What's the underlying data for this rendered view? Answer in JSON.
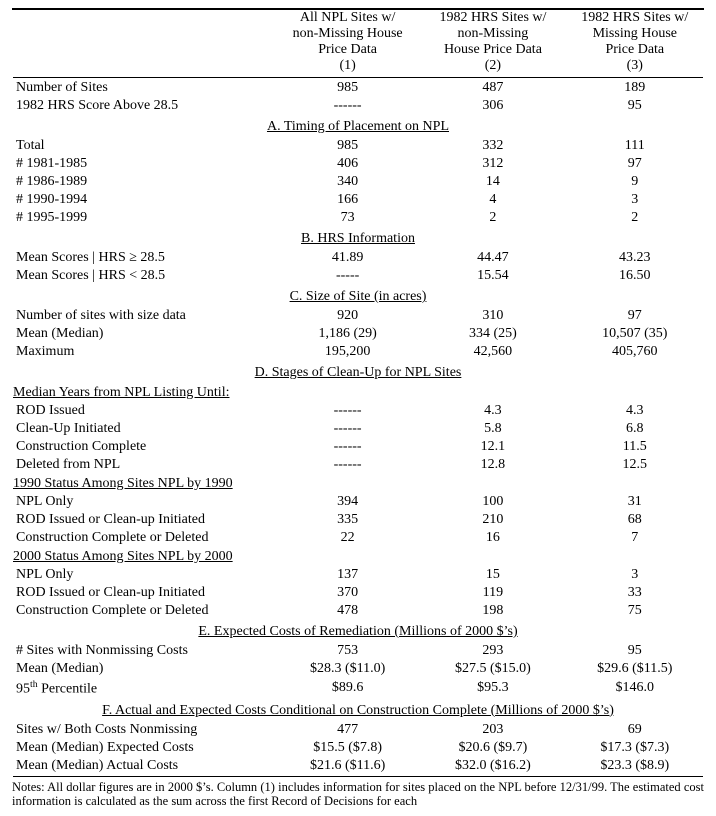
{
  "header": {
    "col1": [
      "All NPL Sites w/",
      "non-Missing House",
      "Price Data"
    ],
    "col2": [
      "1982 HRS Sites w/",
      "non-Missing",
      "House Price Data"
    ],
    "col3": [
      "1982 HRS Sites w/",
      "Missing House",
      "Price Data"
    ],
    "n1": "(1)",
    "n2": "(2)",
    "n3": "(3)"
  },
  "top": {
    "r1": {
      "l": "Number of Sites",
      "c1": "985",
      "c2": "487",
      "c3": "189"
    },
    "r2": {
      "l": "1982 HRS Score Above 28.5",
      "c1": "------",
      "c2": "306",
      "c3": "95"
    }
  },
  "A": {
    "title": "A. Timing of Placement on NPL",
    "rows": [
      {
        "l": "Total",
        "c1": "985",
        "c2": "332",
        "c3": "111"
      },
      {
        "l": "# 1981-1985",
        "c1": "406",
        "c2": "312",
        "c3": "97"
      },
      {
        "l": "# 1986-1989",
        "c1": "340",
        "c2": "14",
        "c3": "9"
      },
      {
        "l": "# 1990-1994",
        "c1": "166",
        "c2": "4",
        "c3": "3"
      },
      {
        "l": "# 1995-1999",
        "c1": "73",
        "c2": "2",
        "c3": "2"
      }
    ]
  },
  "B": {
    "title": "B. HRS Information",
    "rows": [
      {
        "l": "Mean Scores | HRS ≥ 28.5",
        "c1": "41.89",
        "c2": "44.47",
        "c3": "43.23"
      },
      {
        "l": "Mean Scores | HRS < 28.5",
        "c1": "-----",
        "c2": "15.54",
        "c3": "16.50"
      }
    ]
  },
  "C": {
    "title": "C. Size of Site (in acres)",
    "rows": [
      {
        "l": "Number of sites with size data",
        "c1": "920",
        "c2": "310",
        "c3": "97"
      },
      {
        "l": "Mean (Median)",
        "c1": "1,186 (29)",
        "c2": "334 (25)",
        "c3": "10,507 (35)"
      },
      {
        "l": "Maximum",
        "c1": "195,200",
        "c2": "42,560",
        "c3": "405,760"
      }
    ]
  },
  "D": {
    "title": "D. Stages of Clean-Up for NPL Sites",
    "sub1": "Median Years from NPL Listing Until:",
    "rows1": [
      {
        "l": "ROD Issued",
        "c1": "------",
        "c2": "4.3",
        "c3": "4.3"
      },
      {
        "l": "Clean-Up Initiated",
        "c1": "------",
        "c2": "5.8",
        "c3": "6.8"
      },
      {
        "l": "Construction Complete",
        "c1": "------",
        "c2": "12.1",
        "c3": "11.5"
      },
      {
        "l": "Deleted from NPL",
        "c1": "------",
        "c2": "12.8",
        "c3": "12.5"
      }
    ],
    "sub2": "1990 Status Among Sites NPL by 1990",
    "rows2": [
      {
        "l": "NPL Only",
        "c1": "394",
        "c2": "100",
        "c3": "31"
      },
      {
        "l": "ROD Issued or Clean-up Initiated",
        "c1": "335",
        "c2": "210",
        "c3": "68"
      },
      {
        "l": "Construction Complete or Deleted",
        "c1": "22",
        "c2": "16",
        "c3": "7"
      }
    ],
    "sub3": "2000 Status Among Sites NPL by 2000",
    "rows3": [
      {
        "l": "NPL Only",
        "c1": "137",
        "c2": "15",
        "c3": "3"
      },
      {
        "l": "ROD Issued or Clean-up Initiated",
        "c1": "370",
        "c2": "119",
        "c3": "33"
      },
      {
        "l": "Construction Complete or Deleted",
        "c1": "478",
        "c2": "198",
        "c3": "75"
      }
    ]
  },
  "E": {
    "title": "E. Expected Costs of Remediation (Millions of 2000 $’s)",
    "rows": [
      {
        "l": "# Sites with Nonmissing Costs",
        "c1": "753",
        "c2": "293",
        "c3": "95"
      },
      {
        "l": "Mean (Median)",
        "c1": "$28.3 ($11.0)",
        "c2": "$27.5 ($15.0)",
        "c3": "$29.6 ($11.5)"
      },
      {
        "l": "95th Percentile",
        "c1": "$89.6",
        "c2": "$95.3",
        "c3": "$146.0",
        "sup": "th"
      }
    ]
  },
  "F": {
    "title": "F. Actual and Expected Costs Conditional on Construction Complete (Millions of 2000 $’s)",
    "rows": [
      {
        "l": "Sites w/ Both Costs Nonmissing",
        "c1": "477",
        "c2": "203",
        "c3": "69"
      },
      {
        "l": "Mean (Median) Expected Costs",
        "c1": "$15.5 ($7.8)",
        "c2": "$20.6 ($9.7)",
        "c3": "$17.3 ($7.3)"
      },
      {
        "l": "Mean (Median) Actual Costs",
        "c1": "$21.6 ($11.6)",
        "c2": "$32.0 ($16.2)",
        "c3": "$23.3 ($8.9)"
      }
    ]
  },
  "notes": "Notes: All dollar figures are in 2000 $’s.  Column (1) includes information for sites placed on the NPL before 12/31/99.  The estimated cost information is calculated as the sum across the first Record of Decisions for each"
}
